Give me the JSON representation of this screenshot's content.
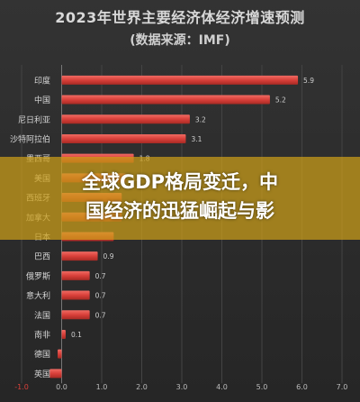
{
  "headline": {
    "line1": "全球GDP格局变迁，中",
    "line2": "国经济的迅猛崛起与影"
  },
  "chart_data": {
    "type": "bar",
    "orientation": "horizontal",
    "title": "2023年世界主要经济体经济增速预测",
    "subtitle": "(数据来源：IMF)",
    "categories": [
      "印度",
      "中国",
      "尼日利亚",
      "沙特阿拉伯",
      "墨西哥",
      "美国",
      "西班牙",
      "加拿大",
      "日本",
      "巴西",
      "俄罗斯",
      "意大利",
      "法国",
      "南非",
      "德国",
      "英国"
    ],
    "values": [
      5.9,
      5.2,
      3.2,
      3.1,
      1.8,
      1.6,
      1.5,
      1.5,
      1.3,
      0.9,
      0.7,
      0.7,
      0.7,
      0.1,
      -0.1,
      -0.3
    ],
    "value_labels": [
      "5.9",
      "5.2",
      "3.2",
      "3.1",
      "1.8",
      "1.6",
      "",
      "",
      "",
      "0.9",
      "0.7",
      "0.7",
      "0.7",
      "0.1",
      "",
      ""
    ],
    "x_ticks": [
      -1.0,
      0.0,
      1.0,
      2.0,
      3.0,
      4.0,
      5.0,
      6.0,
      7.0
    ],
    "xlim": [
      -1.0,
      7.0
    ],
    "grid": true,
    "bar_color": "#d9403a",
    "negative_tick_color": "#d9403a"
  }
}
